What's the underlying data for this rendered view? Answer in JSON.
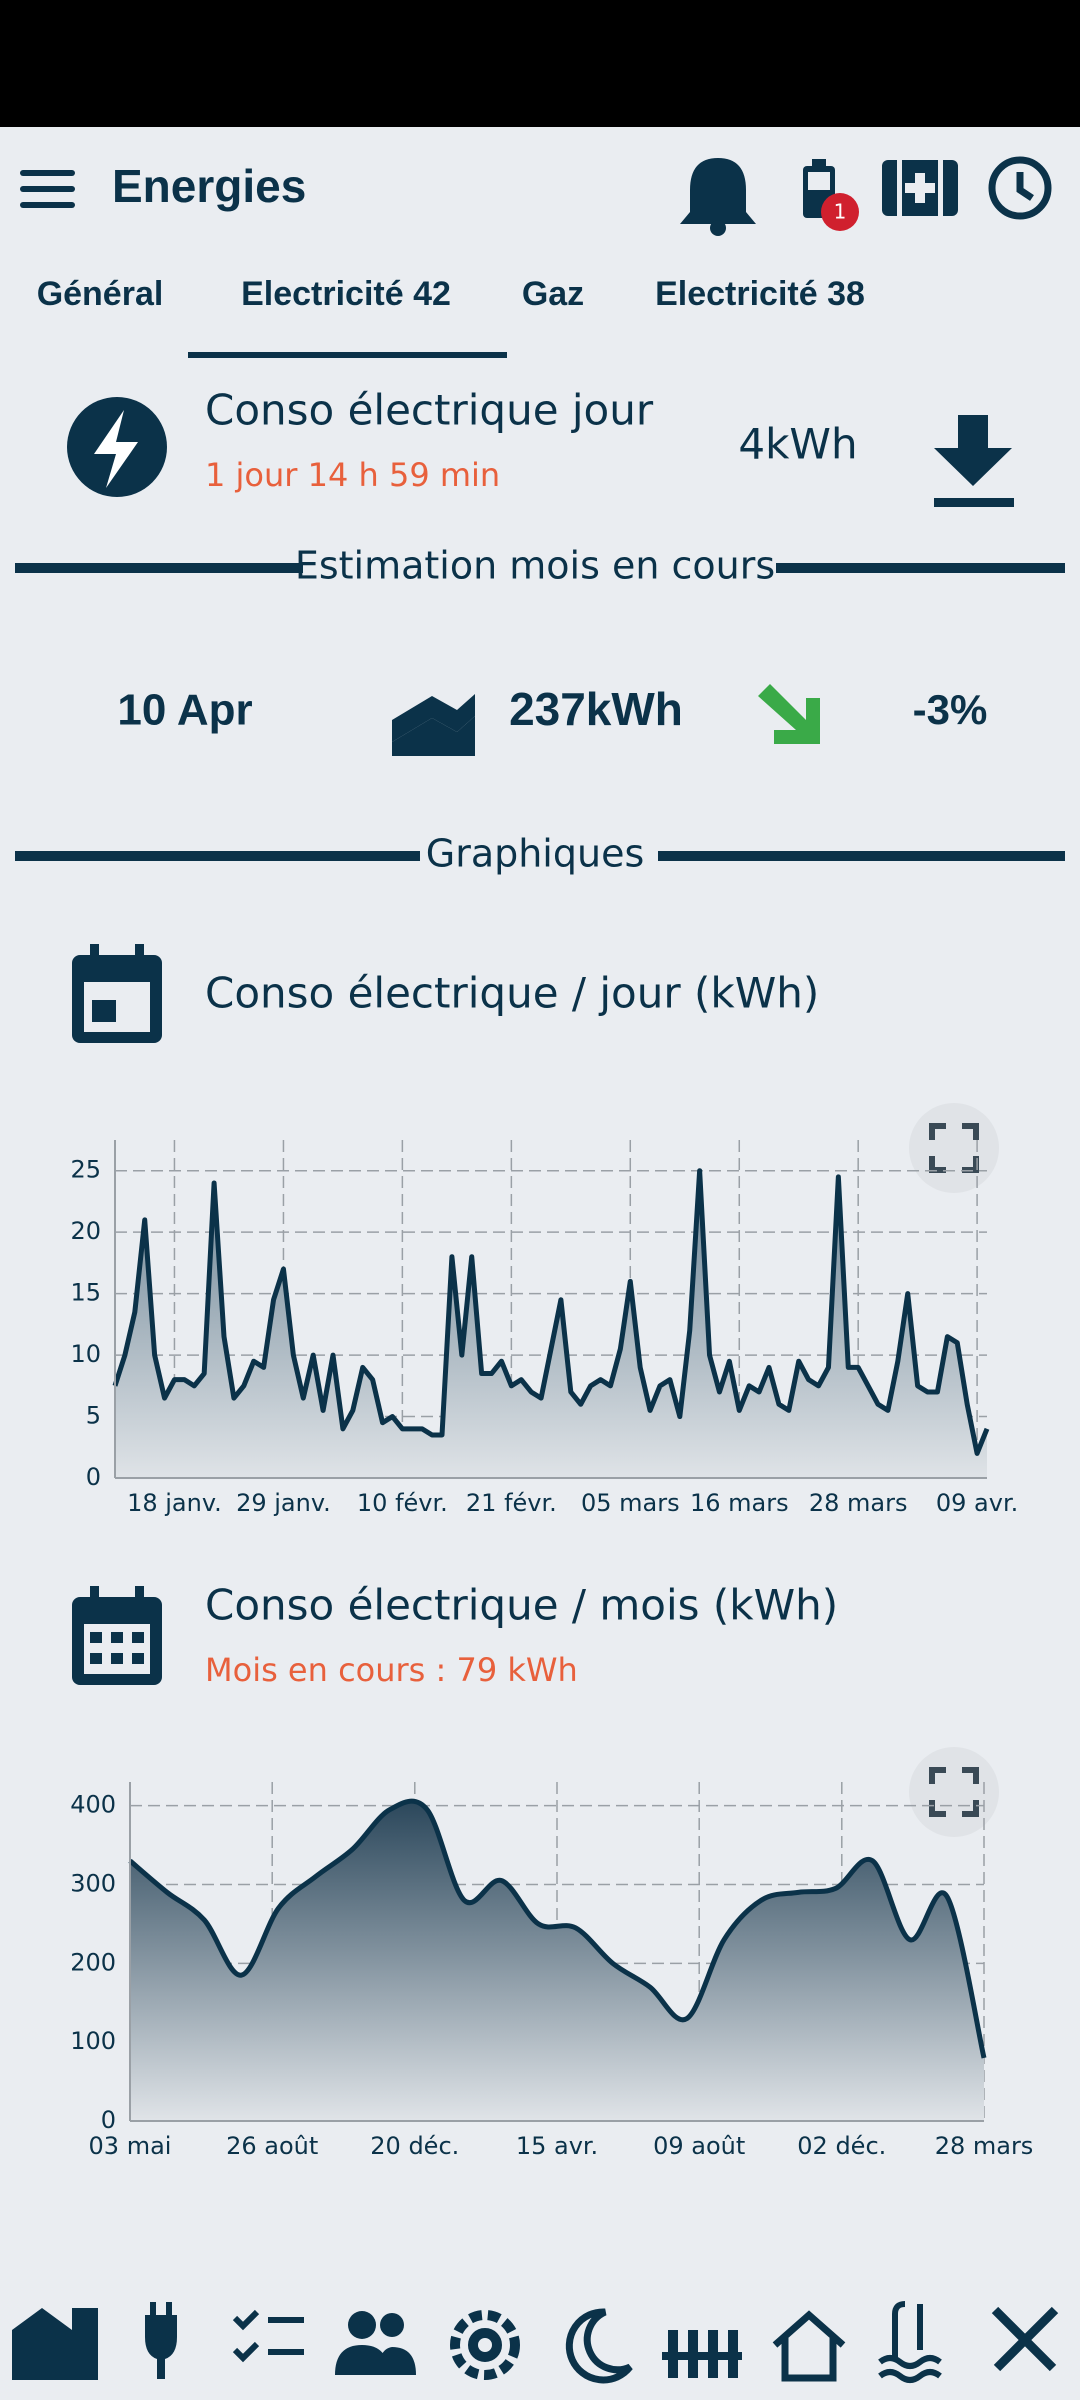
{
  "app_bar": {
    "title": "Energies",
    "badge": "1"
  },
  "tabs": [
    "Général",
    "Electricité 42",
    "Gaz",
    "Electricité 38"
  ],
  "summary": {
    "title": "Conso électrique jour",
    "subtitle": "1 jour 14 h 59 min",
    "value": "4kWh"
  },
  "estimate": {
    "heading": "Estimation mois en cours",
    "date": "10 Apr",
    "value": "237kWh",
    "change": "-3%"
  },
  "charts_heading": "Graphiques",
  "chart_data": [
    {
      "type": "area",
      "title": "Conso électrique / jour (kWh)",
      "color": "#0b3249",
      "grid": true,
      "values": [
        7.5,
        10,
        13.5,
        21,
        10,
        6.5,
        8,
        8,
        7.5,
        8.5,
        24,
        11.5,
        6.5,
        7.5,
        9.5,
        9,
        14.5,
        17,
        10,
        6.5,
        10,
        5.5,
        10,
        4,
        5.5,
        9,
        8,
        4.5,
        5,
        4,
        4,
        4,
        3.5,
        3.5,
        18,
        10,
        18,
        8.5,
        8.5,
        9.5,
        7.5,
        8,
        7,
        6.5,
        10.5,
        14.5,
        7,
        6,
        7.5,
        8,
        7.5,
        10.5,
        16,
        9,
        5.5,
        7.5,
        8,
        5,
        12,
        25,
        10,
        7,
        9.5,
        5.5,
        7.5,
        7,
        9,
        6,
        5.5,
        9.5,
        8,
        7.5,
        9,
        24.5,
        9,
        9,
        7.5,
        6,
        5.5,
        9.5,
        15,
        7.5,
        7,
        7,
        11.5,
        11,
        6,
        2,
        4
      ],
      "xlim": [
        0,
        88
      ],
      "xticks": [
        {
          "value": 6,
          "label": "18 janv."
        },
        {
          "value": 17,
          "label": "29 janv."
        },
        {
          "value": 29,
          "label": "10 févr."
        },
        {
          "value": 40,
          "label": "21 févr."
        },
        {
          "value": 52,
          "label": "05 mars"
        },
        {
          "value": 63,
          "label": "16 mars"
        },
        {
          "value": 75,
          "label": "28 mars"
        },
        {
          "value": 87,
          "label": "09 avr."
        }
      ],
      "ylim": [
        0,
        27.5
      ],
      "yticks": [
        0,
        5,
        10,
        15,
        20,
        25
      ]
    },
    {
      "type": "area",
      "title": "Conso électrique / mois (kWh)",
      "subtitle": "Mois en cours : 79 kWh",
      "color": "#0b3249",
      "grid": true,
      "smooth": true,
      "values": [
        330,
        290,
        255,
        185,
        270,
        310,
        345,
        395,
        395,
        280,
        305,
        250,
        245,
        200,
        170,
        130,
        230,
        280,
        290,
        295,
        330,
        230,
        285,
        80
      ],
      "xlim": [
        0,
        23
      ],
      "xticks": [
        {
          "value": 0,
          "label": "03 mai"
        },
        {
          "value": 3.83,
          "label": "26 août"
        },
        {
          "value": 7.67,
          "label": "20 déc."
        },
        {
          "value": 11.5,
          "label": "15 avr."
        },
        {
          "value": 15.33,
          "label": "09 août"
        },
        {
          "value": 19.17,
          "label": "02 déc."
        },
        {
          "value": 23,
          "label": "28 mars"
        }
      ],
      "ylim": [
        0,
        430
      ],
      "yticks": [
        0,
        100,
        200,
        300,
        400
      ]
    }
  ]
}
